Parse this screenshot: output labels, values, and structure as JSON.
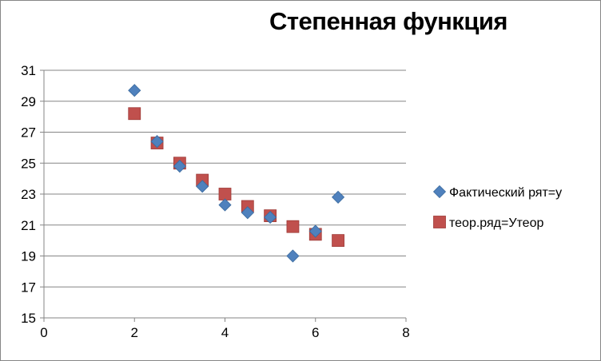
{
  "chart_data": {
    "type": "scatter",
    "title": "Степенная функция",
    "xlabel": "",
    "ylabel": "",
    "xlim": [
      0,
      8
    ],
    "ylim": [
      15,
      31
    ],
    "xticks": [
      0,
      2,
      4,
      6,
      8
    ],
    "yticks": [
      15,
      17,
      19,
      21,
      23,
      25,
      27,
      29,
      31
    ],
    "grid": "horizontal",
    "legend_position": "right",
    "series": [
      {
        "name": "Фактический рят=y",
        "marker": "diamond",
        "color": "#4F81BD",
        "points": [
          {
            "x": 2.0,
            "y": 29.7
          },
          {
            "x": 2.5,
            "y": 26.4
          },
          {
            "x": 3.0,
            "y": 24.8
          },
          {
            "x": 3.5,
            "y": 23.5
          },
          {
            "x": 4.0,
            "y": 22.3
          },
          {
            "x": 4.5,
            "y": 21.8
          },
          {
            "x": 5.0,
            "y": 21.5
          },
          {
            "x": 5.5,
            "y": 19.0
          },
          {
            "x": 6.0,
            "y": 20.6
          },
          {
            "x": 6.5,
            "y": 22.8
          }
        ]
      },
      {
        "name": "теор.ряд=Утеор",
        "marker": "square",
        "color": "#C0504D",
        "points": [
          {
            "x": 2.0,
            "y": 28.2
          },
          {
            "x": 2.5,
            "y": 26.3
          },
          {
            "x": 3.0,
            "y": 25.0
          },
          {
            "x": 3.5,
            "y": 23.9
          },
          {
            "x": 4.0,
            "y": 23.0
          },
          {
            "x": 4.5,
            "y": 22.2
          },
          {
            "x": 5.0,
            "y": 21.6
          },
          {
            "x": 5.5,
            "y": 20.9
          },
          {
            "x": 6.0,
            "y": 20.4
          },
          {
            "x": 6.5,
            "y": 20.0
          }
        ]
      }
    ]
  }
}
